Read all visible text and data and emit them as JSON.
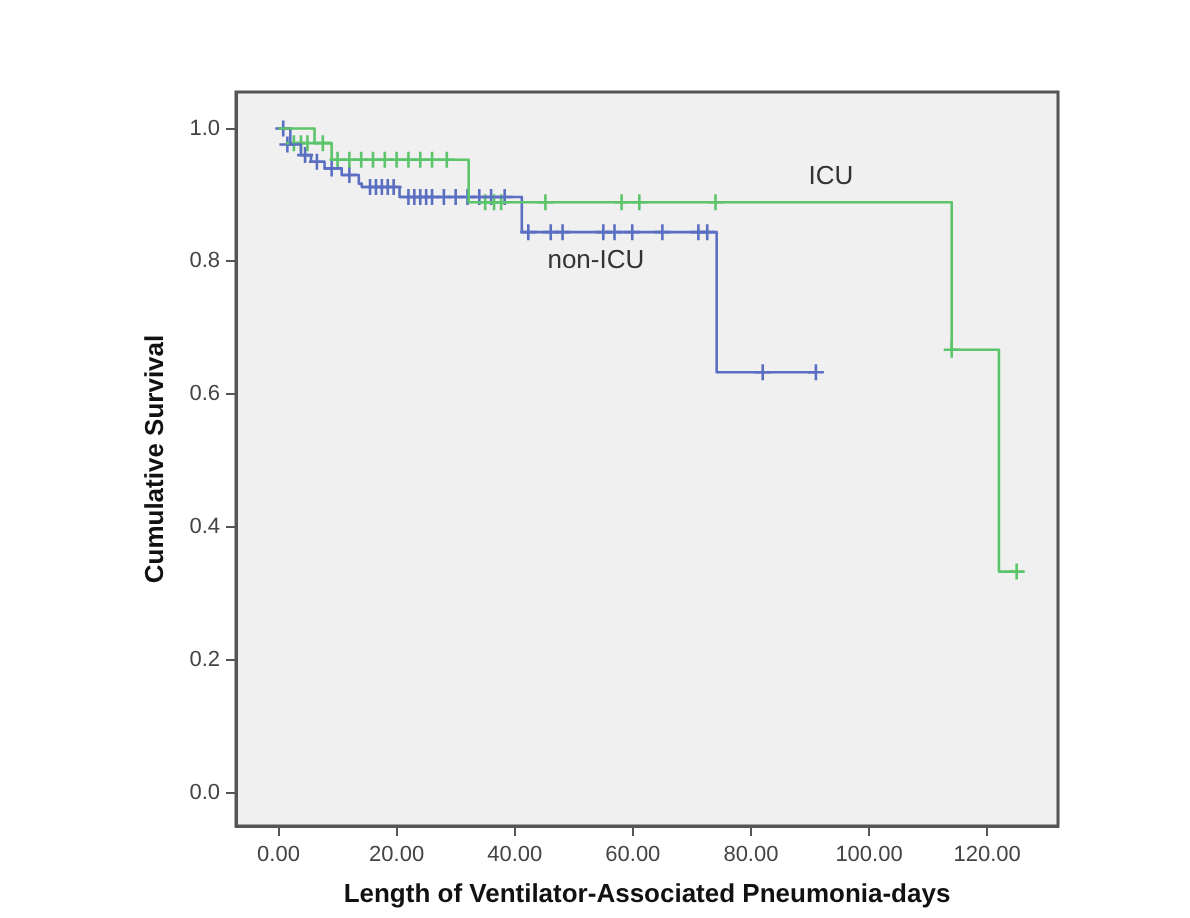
{
  "chart_data": {
    "type": "step",
    "xlabel": "Length of Ventilator-Associated Pneumonia-days",
    "ylabel": "Cumulative Survival",
    "xlim": [
      -7.2,
      132
    ],
    "ylim": [
      -0.05,
      1.055
    ],
    "xticks": [
      {
        "value": 0,
        "label": "0.00"
      },
      {
        "value": 20,
        "label": "20.00"
      },
      {
        "value": 40,
        "label": "40.00"
      },
      {
        "value": 60,
        "label": "60.00"
      },
      {
        "value": 80,
        "label": "80.00"
      },
      {
        "value": 100,
        "label": "100.00"
      },
      {
        "value": 120,
        "label": "120.00"
      }
    ],
    "yticks": [
      {
        "value": 0,
        "label": "0.0"
      },
      {
        "value": 0.2,
        "label": "0.2"
      },
      {
        "value": 0.4,
        "label": "0.4"
      },
      {
        "value": 0.6,
        "label": "0.6"
      },
      {
        "value": 0.8,
        "label": "0.8"
      },
      {
        "value": 1,
        "label": "1.0"
      }
    ],
    "grid": false,
    "legend": false,
    "series": [
      {
        "name": "ICU",
        "color": "#5cc46a",
        "x": [
          0,
          6.1,
          9,
          32.2,
          114,
          122,
          125
        ],
        "values": [
          1,
          0.978,
          0.953,
          0.889,
          0.667,
          0.333,
          0.333
        ]
      },
      {
        "name": "non-ICU",
        "color": "#5b6fc2",
        "x": [
          0,
          2,
          3.8,
          5.5,
          7.8,
          10.7,
          13.6,
          14.1,
          20.5,
          41.2,
          74.2,
          91
        ],
        "values": [
          1,
          0.976,
          0.96,
          0.95,
          0.94,
          0.93,
          0.917,
          0.912,
          0.897,
          0.844,
          0.633,
          0.633
        ]
      },
      {
        "type": "scatter",
        "marker": "cross",
        "color": "#5cc46a",
        "x": [
          2.6,
          3.8,
          4.9,
          7.5,
          10,
          12,
          14,
          16,
          18,
          20,
          22,
          24,
          26,
          28.5,
          35,
          36.5,
          37.7,
          45.2,
          58.1,
          61.1,
          74,
          114,
          125
        ],
        "values": [
          0.978,
          0.978,
          0.978,
          0.978,
          0.953,
          0.953,
          0.953,
          0.953,
          0.953,
          0.953,
          0.953,
          0.953,
          0.953,
          0.953,
          0.889,
          0.889,
          0.889,
          0.889,
          0.889,
          0.889,
          0.889,
          0.667,
          0.333
        ]
      },
      {
        "type": "scatter",
        "marker": "cross",
        "color": "#5b6fc2",
        "x": [
          0.8,
          1.5,
          4.5,
          6.5,
          9,
          12,
          15.5,
          16.5,
          17.5,
          18.5,
          19.5,
          22,
          23,
          24,
          25,
          26,
          28,
          30,
          32,
          34,
          36,
          38.3,
          42.3,
          46.1,
          48.1,
          55,
          56.9,
          59.9,
          65,
          71.1,
          72.6,
          82,
          91
        ],
        "values": [
          1,
          0.976,
          0.96,
          0.95,
          0.94,
          0.93,
          0.912,
          0.912,
          0.912,
          0.912,
          0.912,
          0.897,
          0.897,
          0.897,
          0.897,
          0.897,
          0.897,
          0.897,
          0.897,
          0.897,
          0.897,
          0.897,
          0.844,
          0.844,
          0.844,
          0.844,
          0.844,
          0.844,
          0.844,
          0.844,
          0.844,
          0.633,
          0.633
        ]
      }
    ]
  }
}
